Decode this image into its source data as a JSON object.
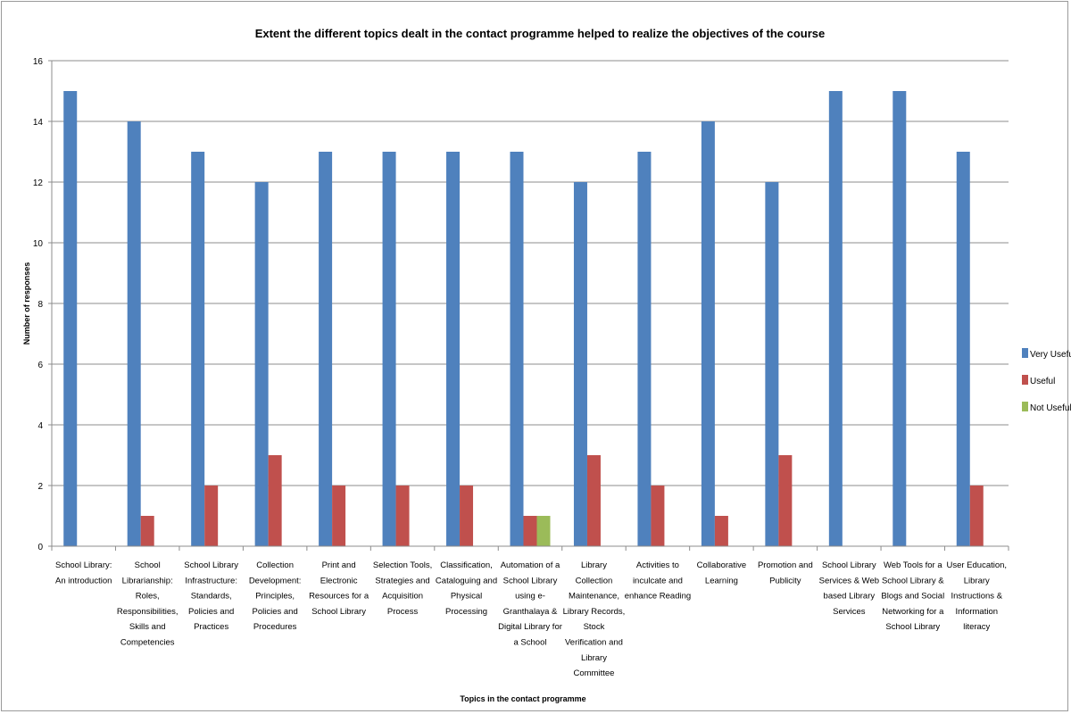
{
  "chart_data": {
    "type": "bar",
    "title": "Extent the different topics dealt in the contact programme helped to realize the objectives of the course",
    "xlabel": "Topics in the contact programme",
    "ylabel": "Number of responses",
    "ylim": [
      0,
      16
    ],
    "yticks": [
      0,
      2,
      4,
      6,
      8,
      10,
      12,
      14,
      16
    ],
    "grid": true,
    "legend_position": "right",
    "categories": [
      "School Library: An introduction",
      "School Librarianship: Roles, Responsibilities, Skills and Competencies",
      "School Library Infrastructure: Standards, Policies and Practices",
      "Collection Development: Principles, Policies and Procedures",
      "Print and Electronic Resources for a School Library",
      "Selection Tools, Strategies and Acquisition Process",
      "Classification, Cataloguing and Physical Processing",
      "Automation of a School Library using e-Granthalaya & Digital Library for a School",
      "Library Collection Maintenance, Library Records, Stock Verification and Library Committee",
      "Activities to inculcate and enhance Reading",
      "Collaborative Learning",
      "Promotion and Publicity",
      "School Library Services & Web based Library Services",
      "Web Tools for a School Library & Blogs and Social Networking for a School Library",
      "User Education, Library Instructions & Information literacy"
    ],
    "category_lines": [
      [
        "School Library:",
        "An introduction"
      ],
      [
        "School",
        "Librarianship:",
        "Roles,",
        "Responsibilities,",
        "Skills and",
        "Competencies"
      ],
      [
        "School Library",
        "Infrastructure:",
        "Standards,",
        "Policies and",
        "Practices"
      ],
      [
        "Collection",
        "Development:",
        "Principles,",
        "Policies and",
        "Procedures"
      ],
      [
        "Print and",
        "Electronic",
        "Resources for a",
        "School Library"
      ],
      [
        "Selection Tools,",
        "Strategies and",
        "Acquisition",
        "Process"
      ],
      [
        "Classification,",
        "Cataloguing and",
        "Physical",
        "Processing"
      ],
      [
        "Automation of a",
        "School Library",
        "using e-",
        "Granthalaya &",
        "Digital Library for",
        "a School"
      ],
      [
        "Library",
        "Collection",
        "Maintenance,",
        "Library Records,",
        "Stock",
        "Verification and",
        "Library",
        "Committee"
      ],
      [
        "Activities to",
        "inculcate and",
        "enhance Reading"
      ],
      [
        "Collaborative",
        "Learning"
      ],
      [
        "Promotion and",
        "Publicity"
      ],
      [
        "School Library",
        "Services & Web",
        "based Library",
        "Services"
      ],
      [
        "Web Tools for a",
        "School Library &",
        "Blogs and Social",
        "Networking for a",
        "School Library"
      ],
      [
        "User Education,",
        "Library",
        "Instructions &",
        "Information",
        "literacy"
      ]
    ],
    "series": [
      {
        "name": "Very Useful",
        "color": "#4f81bd",
        "values": [
          15,
          14,
          13,
          12,
          13,
          13,
          13,
          13,
          12,
          13,
          14,
          12,
          15,
          15,
          13
        ]
      },
      {
        "name": "Useful",
        "color": "#c0504d",
        "values": [
          0,
          1,
          2,
          3,
          2,
          2,
          2,
          1,
          3,
          2,
          1,
          3,
          0,
          0,
          2
        ]
      },
      {
        "name": "Not Useful",
        "color": "#9bbb59",
        "values": [
          0,
          0,
          0,
          0,
          0,
          0,
          0,
          1,
          0,
          0,
          0,
          0,
          0,
          0,
          0
        ]
      }
    ]
  }
}
